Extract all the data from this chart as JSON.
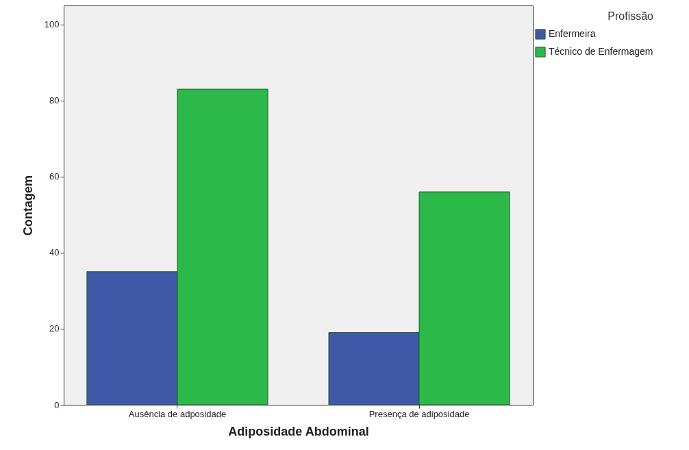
{
  "chart_data": {
    "type": "bar",
    "xlabel": "Adiposidade Abdominal",
    "ylabel": "Contagem",
    "legend_title": "Profissão",
    "categories": [
      "Ausência de adposidade",
      "Presença de adiposidade"
    ],
    "series": [
      {
        "name": "Enfermeira",
        "color": "#3f58a8",
        "values": [
          35,
          19
        ]
      },
      {
        "name": "Técnico de Enfermagem",
        "color": "#2db84a",
        "values": [
          83,
          56
        ]
      }
    ],
    "ylim": [
      0,
      105
    ],
    "yticks": [
      0,
      20,
      40,
      60,
      80,
      100
    ],
    "grid": false,
    "legend": "right"
  }
}
